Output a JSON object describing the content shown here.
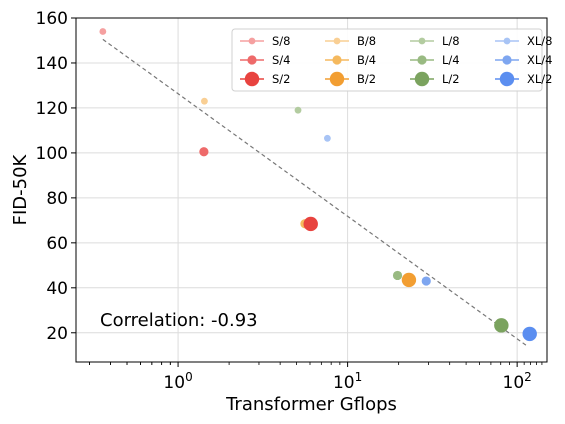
{
  "chart_data": {
    "type": "scatter",
    "xlabel": "Transformer Gflops",
    "ylabel": "FID-50K",
    "xscale": "log",
    "xlim": [
      0.25,
      150
    ],
    "ylim": [
      7,
      160
    ],
    "yticks": [
      20,
      40,
      60,
      80,
      100,
      120,
      140,
      160
    ],
    "xticks": [
      {
        "value": 1,
        "base": "10",
        "exp": "0"
      },
      {
        "value": 10,
        "base": "10",
        "exp": "1"
      },
      {
        "value": 100,
        "base": "10",
        "exp": "2"
      }
    ],
    "grid": true,
    "legend_position": "top-right",
    "annotation": "Correlation: -0.93",
    "trendline": {
      "x": [
        0.36,
        115
      ],
      "y": [
        150.5,
        14
      ]
    },
    "series": [
      {
        "name": "S/8",
        "color": "#f5a0a0",
        "size": 3,
        "points": [
          {
            "x": 0.36,
            "y": 154
          }
        ]
      },
      {
        "name": "B/8",
        "color": "#f9cf94",
        "size": 3,
        "points": [
          {
            "x": 1.43,
            "y": 123
          }
        ]
      },
      {
        "name": "L/8",
        "color": "#b3cca0",
        "size": 3,
        "points": [
          {
            "x": 5.1,
            "y": 119
          }
        ]
      },
      {
        "name": "XL/8",
        "color": "#a8c4f5",
        "size": 3,
        "points": [
          {
            "x": 7.6,
            "y": 106.5
          }
        ]
      },
      {
        "name": "S/4",
        "color": "#ee6a6a",
        "size": 2,
        "points": [
          {
            "x": 1.42,
            "y": 100.5
          }
        ]
      },
      {
        "name": "B/4",
        "color": "#f5b95e",
        "size": 2,
        "points": [
          {
            "x": 5.6,
            "y": 68.5
          }
        ]
      },
      {
        "name": "L/4",
        "color": "#99ba82",
        "size": 2,
        "points": [
          {
            "x": 19.7,
            "y": 45.5
          }
        ]
      },
      {
        "name": "XL/4",
        "color": "#7ea6f0",
        "size": 2,
        "points": [
          {
            "x": 29.1,
            "y": 43
          }
        ]
      },
      {
        "name": "S/2",
        "color": "#e8433f",
        "size": 1,
        "points": [
          {
            "x": 6.06,
            "y": 68.4
          }
        ]
      },
      {
        "name": "B/2",
        "color": "#f29e32",
        "size": 1,
        "points": [
          {
            "x": 23.0,
            "y": 43.5
          }
        ]
      },
      {
        "name": "L/2",
        "color": "#7ba35f",
        "size": 1,
        "points": [
          {
            "x": 80.7,
            "y": 23.3
          }
        ]
      },
      {
        "name": "XL/2",
        "color": "#5b8ef0",
        "size": 1,
        "points": [
          {
            "x": 118.6,
            "y": 19.5
          }
        ]
      }
    ]
  }
}
